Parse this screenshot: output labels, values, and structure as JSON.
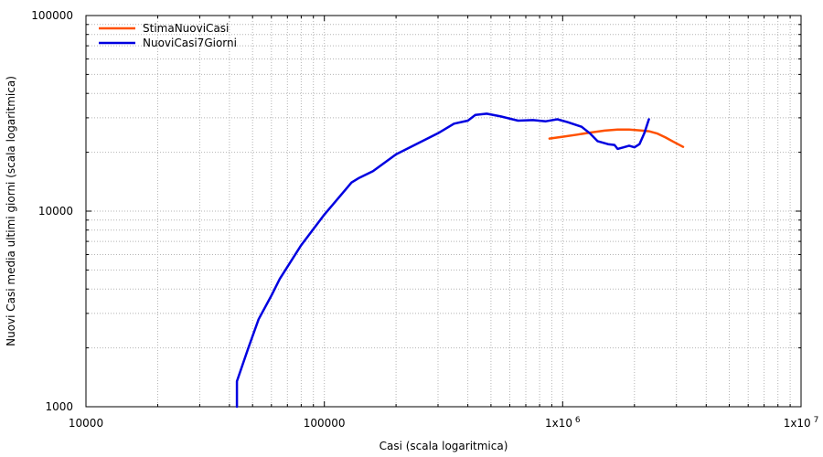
{
  "chart_data": {
    "type": "line",
    "title": "",
    "xlabel": "Casi (scala logaritmica)",
    "ylabel": "Nuovi Casi media ultimi giorni (scala logaritmica)",
    "x_scale": "log",
    "y_scale": "log",
    "xlim": [
      10000,
      10000000
    ],
    "ylim": [
      1000,
      100000
    ],
    "grid": true,
    "legend_position": "top-left",
    "x_ticks": [
      {
        "value": 10000,
        "label": "10000"
      },
      {
        "value": 100000,
        "label": "100000"
      },
      {
        "value": 1000000,
        "label": "1x10",
        "exp": "6"
      },
      {
        "value": 10000000,
        "label": "1x10",
        "exp": "7"
      }
    ],
    "y_ticks": [
      {
        "value": 1000,
        "label": "1000"
      },
      {
        "value": 10000,
        "label": "10000"
      },
      {
        "value": 100000,
        "label": "100000"
      }
    ],
    "series": [
      {
        "name": "StimaNuoviCasi",
        "color": "#ff5000",
        "points": [
          [
            880000,
            23500
          ],
          [
            1000000,
            24000
          ],
          [
            1150000,
            24600
          ],
          [
            1300000,
            25200
          ],
          [
            1500000,
            25800
          ],
          [
            1700000,
            26100
          ],
          [
            1900000,
            26100
          ],
          [
            2100000,
            25900
          ],
          [
            2300000,
            25600
          ],
          [
            2500000,
            24900
          ],
          [
            2700000,
            23800
          ],
          [
            2900000,
            22700
          ],
          [
            3200000,
            21300
          ]
        ]
      },
      {
        "name": "NuoviCasi7Giorni",
        "color": "#0000e0",
        "points": [
          [
            43000,
            1000
          ],
          [
            43000,
            1350
          ],
          [
            48000,
            2000
          ],
          [
            53000,
            2800
          ],
          [
            60000,
            3700
          ],
          [
            65000,
            4500
          ],
          [
            80000,
            6700
          ],
          [
            100000,
            9600
          ],
          [
            130000,
            14000
          ],
          [
            140000,
            14800
          ],
          [
            160000,
            16000
          ],
          [
            200000,
            19500
          ],
          [
            300000,
            25000
          ],
          [
            350000,
            28000
          ],
          [
            400000,
            29000
          ],
          [
            430000,
            31000
          ],
          [
            480000,
            31500
          ],
          [
            550000,
            30500
          ],
          [
            650000,
            29000
          ],
          [
            750000,
            29200
          ],
          [
            850000,
            28800
          ],
          [
            950000,
            29500
          ],
          [
            1050000,
            28500
          ],
          [
            1200000,
            27000
          ],
          [
            1300000,
            25000
          ],
          [
            1400000,
            22800
          ],
          [
            1550000,
            22000
          ],
          [
            1650000,
            21800
          ],
          [
            1700000,
            20800
          ],
          [
            1800000,
            21200
          ],
          [
            1900000,
            21600
          ],
          [
            2000000,
            21200
          ],
          [
            2100000,
            22000
          ],
          [
            2200000,
            25000
          ],
          [
            2300000,
            29500
          ]
        ]
      }
    ]
  }
}
